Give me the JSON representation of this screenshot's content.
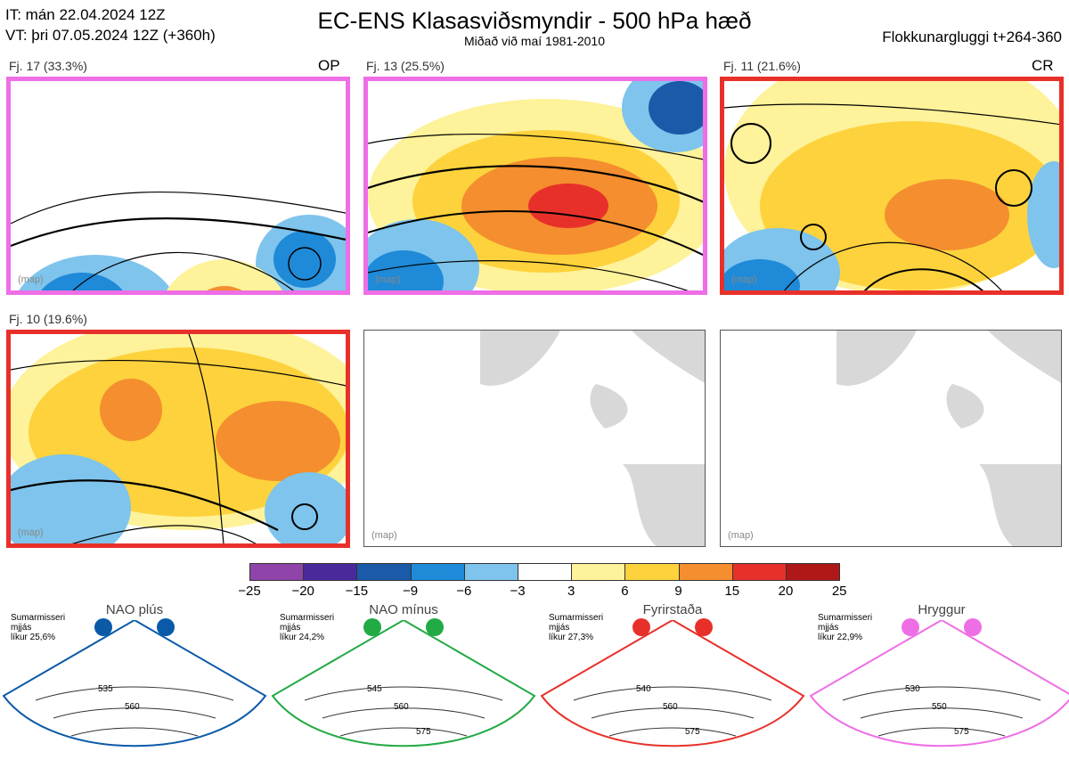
{
  "header": {
    "it_line": "IT: mán 22.04.2024 12Z",
    "vt_line": "VT: þri 07.05.2024 12Z  (+360h)",
    "title": "EC-ENS Klasasviðsmyndir - 500 hPa hæð",
    "subtitle": "Miðað við maí 1981-2010",
    "window": "Flokkunargluggi t+264-360"
  },
  "clusters": [
    {
      "label": "Fj. 17 (33.3%)",
      "tag": "OP",
      "frame_color": "#ee6ee6"
    },
    {
      "label": "Fj. 13 (25.5%)",
      "tag": "",
      "frame_color": "#ee6ee6"
    },
    {
      "label": "Fj. 11 (21.6%)",
      "tag": "CR",
      "frame_color": "#e8302a"
    },
    {
      "label": "Fj. 10 (19.6%)",
      "tag": "",
      "frame_color": "#e8302a"
    }
  ],
  "panel_placeholder": "(map)",
  "colorbar": {
    "ticks": [
      "−25",
      "−20",
      "−15",
      "−9",
      "−6",
      "−3",
      "3",
      "6",
      "9",
      "15",
      "20",
      "25"
    ],
    "colors": [
      "#8e44a8",
      "#4a2a9a",
      "#1a5aa8",
      "#1e8ad8",
      "#7ec4ec",
      "#ffffff",
      "#fef29a",
      "#fdd23c",
      "#f48e2e",
      "#e8302a",
      "#b01818"
    ]
  },
  "regimes": [
    {
      "name": "NAO plús",
      "info": "Sumarmisseri\nmjjás\nlíkur 25,6%",
      "color": "#0b5aa8",
      "contours": [
        "535",
        "560"
      ]
    },
    {
      "name": "NAO mínus",
      "info": "Sumarmisseri\nmjjás\nlíkur 24,2%",
      "color": "#22aa44",
      "contours": [
        "545",
        "560",
        "575"
      ]
    },
    {
      "name": "Fyrirstaða",
      "info": "Sumarmisseri\nmjjás\nlíkur 27,3%",
      "color": "#e8302a",
      "contours": [
        "540",
        "560",
        "575"
      ]
    },
    {
      "name": "Hryggur",
      "info": "Sumarmisseri\nmjjás\nlíkur 22,9%",
      "color": "#ee6ee6",
      "contours": [
        "530",
        "550",
        "575"
      ]
    }
  ]
}
